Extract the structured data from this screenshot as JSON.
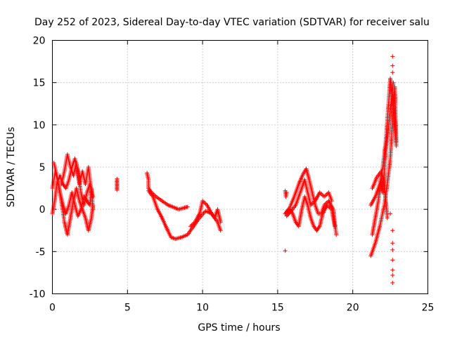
{
  "chart_data": {
    "type": "scatter",
    "title": "Day 252 of 2023, Sidereal Day-to-day VTEC variation (SDTVAR) for receiver salu",
    "xlabel": "GPS time / hours",
    "ylabel": "SDTVAR / TECUs",
    "xlim": [
      0,
      25
    ],
    "ylim": [
      -10,
      20
    ],
    "xticks": [
      0,
      5,
      10,
      15,
      20,
      25
    ],
    "yticks": [
      -10,
      -5,
      0,
      5,
      10,
      15,
      20
    ],
    "grid": true,
    "marker": "+",
    "color": "#ff0000",
    "series": [
      {
        "name": "tracks",
        "segments": [
          [
            [
              0.0,
              2.5
            ],
            [
              0.2,
              4.5
            ],
            [
              0.4,
              3.0
            ],
            [
              0.6,
              1.0
            ],
            [
              0.8,
              -1.5
            ],
            [
              1.0,
              -3.0
            ],
            [
              1.2,
              -1.0
            ],
            [
              1.4,
              1.0
            ],
            [
              1.6,
              2.5
            ],
            [
              1.8,
              1.0
            ],
            [
              2.0,
              0.0
            ],
            [
              2.2,
              -1.0
            ],
            [
              2.4,
              -2.5
            ],
            [
              2.6,
              -1.0
            ],
            [
              2.7,
              0.5
            ]
          ],
          [
            [
              0.0,
              -0.5
            ],
            [
              0.15,
              1.0
            ],
            [
              0.3,
              3.0
            ],
            [
              0.5,
              4.0
            ],
            [
              0.7,
              3.0
            ],
            [
              0.9,
              2.5
            ],
            [
              1.1,
              3.5
            ],
            [
              1.3,
              5.0
            ],
            [
              1.5,
              6.0
            ],
            [
              1.7,
              4.5
            ],
            [
              1.9,
              2.0
            ],
            [
              2.1,
              0.5
            ],
            [
              2.3,
              2.0
            ],
            [
              2.5,
              3.0
            ],
            [
              2.7,
              1.5
            ]
          ],
          [
            [
              0.1,
              5.5
            ],
            [
              0.3,
              4.0
            ],
            [
              0.5,
              2.0
            ],
            [
              0.7,
              0.5
            ],
            [
              0.9,
              -0.5
            ],
            [
              1.1,
              0.5
            ],
            [
              1.3,
              2.0
            ],
            [
              1.5,
              0.5
            ],
            [
              1.7,
              -0.8
            ],
            [
              1.9,
              0.0
            ],
            [
              2.1,
              1.5
            ],
            [
              2.3,
              1.0
            ],
            [
              2.5,
              0.5
            ],
            [
              2.6,
              2.5
            ],
            [
              2.7,
              0.0
            ]
          ],
          [
            [
              0.6,
              3.0
            ],
            [
              0.8,
              4.5
            ],
            [
              1.0,
              6.5
            ],
            [
              1.2,
              5.0
            ],
            [
              1.4,
              4.0
            ],
            [
              1.6,
              5.5
            ],
            [
              1.8,
              3.0
            ],
            [
              2.0,
              4.5
            ],
            [
              2.2,
              3.0
            ],
            [
              2.4,
              5.0
            ],
            [
              2.5,
              3.5
            ],
            [
              2.6,
              2.0
            ]
          ],
          [
            [
              4.3,
              2.3
            ],
            [
              4.3,
              2.8
            ],
            [
              4.3,
              3.3
            ],
            [
              4.3,
              3.6
            ]
          ],
          [
            [
              6.3,
              4.3
            ],
            [
              6.4,
              3.5
            ],
            [
              6.4,
              2.5
            ],
            [
              6.6,
              2.0
            ],
            [
              6.9,
              1.5
            ],
            [
              7.3,
              1.0
            ],
            [
              7.7,
              0.5
            ],
            [
              8.0,
              0.3
            ],
            [
              8.4,
              0.0
            ],
            [
              8.8,
              0.2
            ],
            [
              9.0,
              0.3
            ]
          ],
          [
            [
              6.4,
              2.2
            ],
            [
              6.7,
              1.5
            ],
            [
              7.0,
              0.0
            ],
            [
              7.3,
              -1.0
            ],
            [
              7.6,
              -2.2
            ],
            [
              7.9,
              -3.3
            ],
            [
              8.2,
              -3.5
            ],
            [
              8.6,
              -3.3
            ],
            [
              9.0,
              -3.0
            ],
            [
              9.4,
              -2.0
            ],
            [
              9.8,
              -1.0
            ],
            [
              10.2,
              -0.2
            ],
            [
              10.6,
              -0.5
            ],
            [
              11.0,
              -1.5
            ],
            [
              11.2,
              -2.5
            ]
          ],
          [
            [
              9.2,
              -2.0
            ],
            [
              9.5,
              -1.5
            ],
            [
              9.8,
              -0.5
            ],
            [
              10.0,
              1.0
            ],
            [
              10.3,
              0.5
            ],
            [
              10.6,
              -0.5
            ],
            [
              10.8,
              -1.0
            ],
            [
              11.0,
              0.0
            ],
            [
              11.2,
              -1.5
            ]
          ],
          [
            [
              15.5,
              2.2
            ],
            [
              15.55,
              1.5
            ],
            [
              15.6,
              2.0
            ]
          ],
          [
            [
              15.5,
              -4.9
            ]
          ],
          [
            [
              15.5,
              -0.5
            ],
            [
              15.8,
              0.2
            ],
            [
              16.1,
              1.5
            ],
            [
              16.4,
              3.0
            ],
            [
              16.7,
              4.2
            ],
            [
              16.9,
              4.8
            ],
            [
              17.1,
              3.5
            ],
            [
              17.3,
              2.0
            ],
            [
              17.5,
              0.5
            ],
            [
              17.7,
              -0.5
            ],
            [
              17.9,
              -0.5
            ],
            [
              18.1,
              0.5
            ],
            [
              18.4,
              1.0
            ],
            [
              18.7,
              0.0
            ],
            [
              18.9,
              -3.0
            ]
          ],
          [
            [
              15.5,
              -0.5
            ],
            [
              15.8,
              0.0
            ],
            [
              16.0,
              -0.5
            ],
            [
              16.2,
              -1.5
            ],
            [
              16.4,
              -2.0
            ],
            [
              16.6,
              0.0
            ],
            [
              16.8,
              1.5
            ],
            [
              17.0,
              0.5
            ],
            [
              17.2,
              -1.0
            ],
            [
              17.4,
              -2.0
            ],
            [
              17.6,
              -2.5
            ],
            [
              17.8,
              -2.0
            ],
            [
              18.0,
              -0.5
            ],
            [
              18.3,
              0.5
            ],
            [
              18.6,
              0.0
            ],
            [
              18.8,
              -2.0
            ]
          ],
          [
            [
              15.6,
              -0.8
            ],
            [
              15.9,
              -0.2
            ],
            [
              16.2,
              0.5
            ],
            [
              16.5,
              2.0
            ],
            [
              16.8,
              3.5
            ],
            [
              17.0,
              2.0
            ],
            [
              17.2,
              0.5
            ],
            [
              17.5,
              1.0
            ],
            [
              17.8,
              2.0
            ],
            [
              18.1,
              1.5
            ],
            [
              18.4,
              2.0
            ],
            [
              18.6,
              1.0
            ]
          ],
          [
            [
              21.2,
              -5.5
            ],
            [
              21.5,
              -4.0
            ],
            [
              21.8,
              -2.0
            ],
            [
              22.1,
              0.5
            ],
            [
              22.3,
              3.0
            ],
            [
              22.5,
              6.0
            ],
            [
              22.6,
              9.0
            ],
            [
              22.7,
              12.0
            ],
            [
              22.8,
              14.5
            ],
            [
              22.85,
              11.0
            ],
            [
              22.9,
              8.0
            ]
          ],
          [
            [
              21.2,
              0.5
            ],
            [
              21.5,
              1.5
            ],
            [
              21.8,
              3.0
            ],
            [
              22.0,
              5.0
            ],
            [
              22.2,
              8.0
            ],
            [
              22.3,
              10.5
            ],
            [
              22.4,
              13.0
            ],
            [
              22.5,
              15.5
            ],
            [
              22.6,
              14.0
            ],
            [
              22.7,
              12.5
            ],
            [
              22.8,
              10.0
            ],
            [
              22.9,
              7.5
            ]
          ],
          [
            [
              21.3,
              -3.0
            ],
            [
              21.5,
              -1.0
            ],
            [
              21.7,
              1.0
            ],
            [
              21.9,
              3.5
            ],
            [
              22.0,
              2.0
            ],
            [
              22.1,
              4.5
            ],
            [
              22.2,
              7.0
            ],
            [
              22.4,
              10.0
            ],
            [
              22.6,
              13.5
            ],
            [
              22.7,
              15.0
            ]
          ],
          [
            [
              21.3,
              2.5
            ],
            [
              21.6,
              3.8
            ],
            [
              21.9,
              4.5
            ],
            [
              22.1,
              3.0
            ],
            [
              22.2,
              1.0
            ],
            [
              22.3,
              -1.0
            ]
          ]
        ],
        "points": [
          [
            22.65,
            18.1
          ],
          [
            22.65,
            17.0
          ],
          [
            22.65,
            16.2
          ],
          [
            22.65,
            -2.5
          ],
          [
            22.65,
            -4.0
          ],
          [
            22.65,
            -4.8
          ],
          [
            22.65,
            -6.0
          ],
          [
            22.65,
            -7.2
          ],
          [
            22.65,
            -7.8
          ],
          [
            22.65,
            -8.7
          ],
          [
            22.5,
            -0.5
          ]
        ]
      }
    ]
  }
}
